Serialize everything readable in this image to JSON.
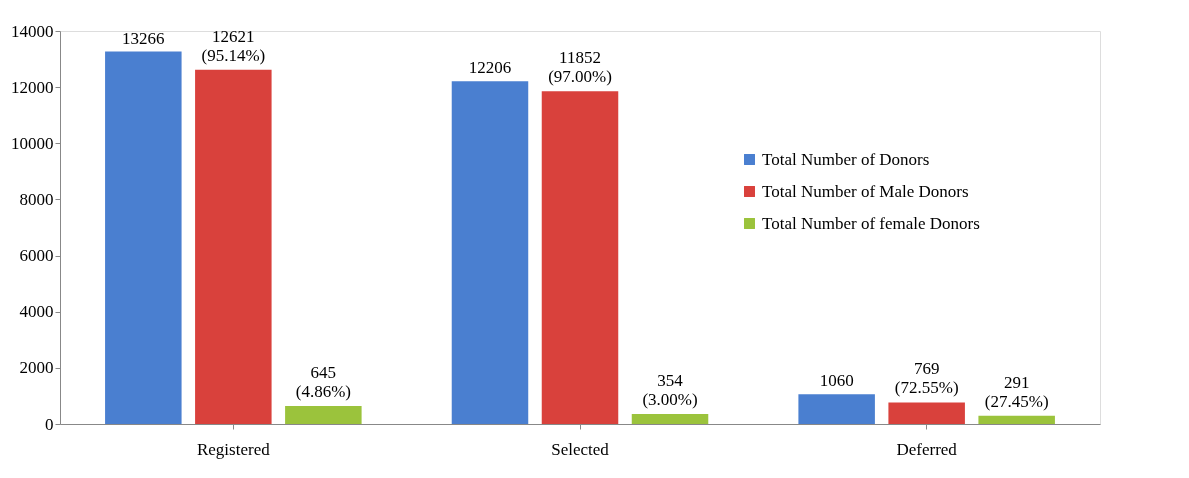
{
  "chart_data": {
    "type": "bar",
    "categories": [
      "Registered",
      "Selected",
      "Deferred"
    ],
    "series": [
      {
        "name": "Total Number of Donors",
        "color": "#4a7fd0",
        "values": [
          13266,
          12206,
          1060
        ],
        "value_labels": [
          "13266",
          "12206",
          "1060"
        ]
      },
      {
        "name": "Total Number of Male Donors",
        "color": "#d9413c",
        "values": [
          12621,
          11852,
          769
        ],
        "value_labels": [
          "12621 (95.14%)",
          "11852 (97.00%)",
          "769 (72.55%)"
        ]
      },
      {
        "name": "Total Number of female Donors",
        "color": "#9bc33c",
        "values": [
          645,
          354,
          291
        ],
        "value_labels": [
          "645 (4.86%)",
          "354 (3.00%)",
          "291 (27.45%)"
        ]
      }
    ],
    "ylim": [
      0,
      14000
    ],
    "yticks": [
      0,
      2000,
      4000,
      6000,
      8000,
      10000,
      12000,
      14000
    ],
    "grid": false,
    "legend": "top right"
  }
}
